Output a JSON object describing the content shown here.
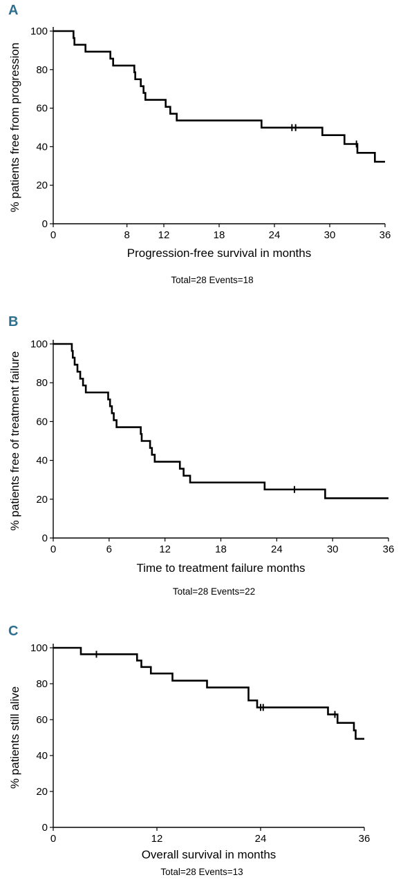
{
  "chart_data": [
    {
      "panel": "A",
      "type": "line",
      "step": true,
      "xlabel": "Progression-free survival in months",
      "ylabel": "% patients free from progression",
      "xlim": [
        0,
        36
      ],
      "ylim": [
        0,
        100
      ],
      "xticks": [
        0,
        8,
        12,
        18,
        24,
        30,
        36
      ],
      "yticks": [
        0,
        20,
        40,
        60,
        80,
        100
      ],
      "footnote": "Total=28    Events=18",
      "steps": [
        [
          0,
          100
        ],
        [
          2.2,
          96.4
        ],
        [
          2.3,
          92.9
        ],
        [
          3.5,
          89.3
        ],
        [
          6.2,
          85.7
        ],
        [
          6.5,
          82.1
        ],
        [
          8.8,
          78.6
        ],
        [
          8.9,
          75.0
        ],
        [
          9.5,
          71.4
        ],
        [
          9.8,
          67.9
        ],
        [
          10.0,
          64.3
        ],
        [
          12.2,
          60.7
        ],
        [
          12.7,
          57.1
        ],
        [
          13.4,
          53.6
        ],
        [
          22.6,
          49.9
        ],
        [
          29.2,
          46.0
        ],
        [
          31.6,
          41.4
        ],
        [
          33.0,
          36.8
        ],
        [
          34.9,
          32.2
        ],
        [
          36,
          32.2
        ]
      ],
      "censored": [
        [
          25.9,
          49.9
        ],
        [
          26.3,
          49.9
        ],
        [
          32.9,
          41.4
        ]
      ]
    },
    {
      "panel": "B",
      "type": "line",
      "step": true,
      "xlabel": "Time to treatment failure months",
      "ylabel": "% patients free of treatment failure",
      "xlim": [
        0,
        36
      ],
      "ylim": [
        0,
        100
      ],
      "xticks": [
        0,
        6,
        12,
        18,
        24,
        30,
        36
      ],
      "yticks": [
        0,
        20,
        40,
        60,
        80,
        100
      ],
      "footnote": "Total=28    Events=22",
      "steps": [
        [
          0,
          100
        ],
        [
          2.0,
          96.4
        ],
        [
          2.1,
          92.9
        ],
        [
          2.3,
          89.3
        ],
        [
          2.6,
          85.7
        ],
        [
          2.9,
          82.1
        ],
        [
          3.2,
          78.6
        ],
        [
          3.5,
          75.0
        ],
        [
          5.9,
          71.4
        ],
        [
          6.1,
          67.9
        ],
        [
          6.3,
          64.3
        ],
        [
          6.5,
          60.7
        ],
        [
          6.8,
          57.1
        ],
        [
          9.4,
          53.6
        ],
        [
          9.5,
          50.0
        ],
        [
          10.4,
          46.4
        ],
        [
          10.6,
          42.9
        ],
        [
          10.9,
          39.3
        ],
        [
          13.6,
          35.7
        ],
        [
          14.0,
          32.1
        ],
        [
          14.7,
          28.6
        ],
        [
          22.7,
          25.0
        ],
        [
          29.2,
          20.5
        ],
        [
          36,
          20.5
        ]
      ],
      "censored": [
        [
          25.9,
          25.0
        ]
      ]
    },
    {
      "panel": "C",
      "type": "line",
      "step": true,
      "xlabel": "Overall survival in months",
      "ylabel": "% patients still alive",
      "xlim": [
        0,
        36
      ],
      "ylim": [
        0,
        100
      ],
      "xticks": [
        0,
        12,
        24,
        36
      ],
      "yticks": [
        0,
        20,
        40,
        60,
        80,
        100
      ],
      "footnote": "Total=28    Events=13",
      "steps": [
        [
          0,
          100
        ],
        [
          3.2,
          96.4
        ],
        [
          9.7,
          92.9
        ],
        [
          10.2,
          89.3
        ],
        [
          11.3,
          85.7
        ],
        [
          13.8,
          81.7
        ],
        [
          17.8,
          77.9
        ],
        [
          22.6,
          70.7
        ],
        [
          23.6,
          66.8
        ],
        [
          31.8,
          62.9
        ],
        [
          32.9,
          58.2
        ],
        [
          34.8,
          54.0
        ],
        [
          35.0,
          49.3
        ],
        [
          36,
          49.3
        ]
      ],
      "censored": [
        [
          5.0,
          96.4
        ],
        [
          24.0,
          66.8
        ],
        [
          24.3,
          66.8
        ],
        [
          32.6,
          62.9
        ]
      ]
    }
  ],
  "panel_labels": [
    "A",
    "B",
    "C"
  ],
  "colors": {
    "line": "#000000",
    "panel_letter": "#2e6e8e"
  }
}
